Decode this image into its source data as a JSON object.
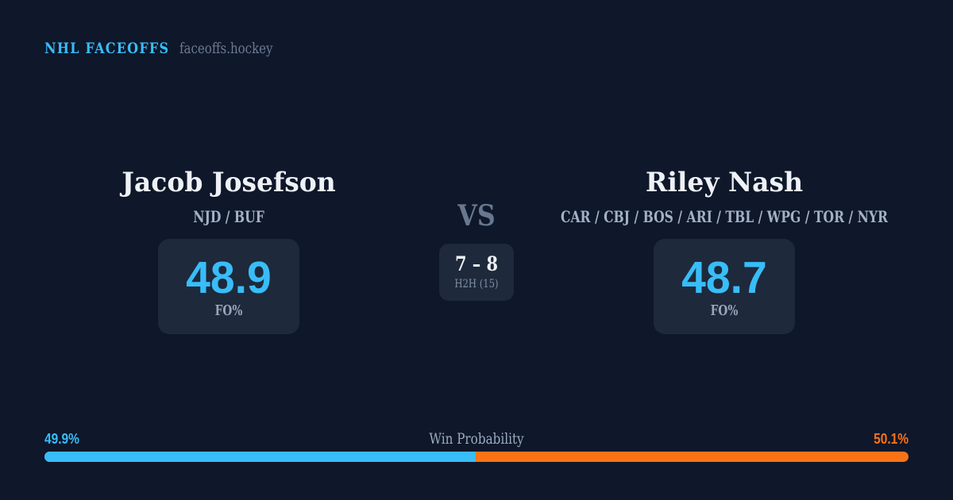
{
  "brand": {
    "title": "NHL FACEOFFS",
    "domain": "faceoffs.hockey",
    "accent_color": "#38bdf8"
  },
  "players": {
    "left": {
      "name": "Jacob Josefson",
      "teams": "NJD / BUF",
      "stat_value": "48.9",
      "stat_label": "FO%"
    },
    "right": {
      "name": "Riley Nash",
      "teams": "CAR / CBJ / BOS / ARI / TBL / WPG / TOR / NYR",
      "stat_value": "48.7",
      "stat_label": "FO%"
    }
  },
  "versus": {
    "label": "VS",
    "h2h_score": "7 – 8",
    "h2h_label": "H2H (15)"
  },
  "win_probability": {
    "title": "Win Probability",
    "left_pct_label": "49.9%",
    "right_pct_label": "50.1%",
    "left_value": 49.9,
    "right_value": 50.1,
    "left_color": "#38bdf8",
    "right_color": "#f97316"
  },
  "chart_data": {
    "type": "bar",
    "title": "Win Probability",
    "categories": [
      "Jacob Josefson",
      "Riley Nash"
    ],
    "series": [
      {
        "name": "Win Probability %",
        "values": [
          49.9,
          50.1
        ]
      },
      {
        "name": "Faceoff %",
        "values": [
          48.9,
          48.7
        ]
      },
      {
        "name": "H2H wins (15 faceoffs)",
        "values": [
          7,
          8
        ]
      }
    ],
    "colors": [
      "#38bdf8",
      "#f97316"
    ],
    "legend_position": "none",
    "grid": false
  }
}
